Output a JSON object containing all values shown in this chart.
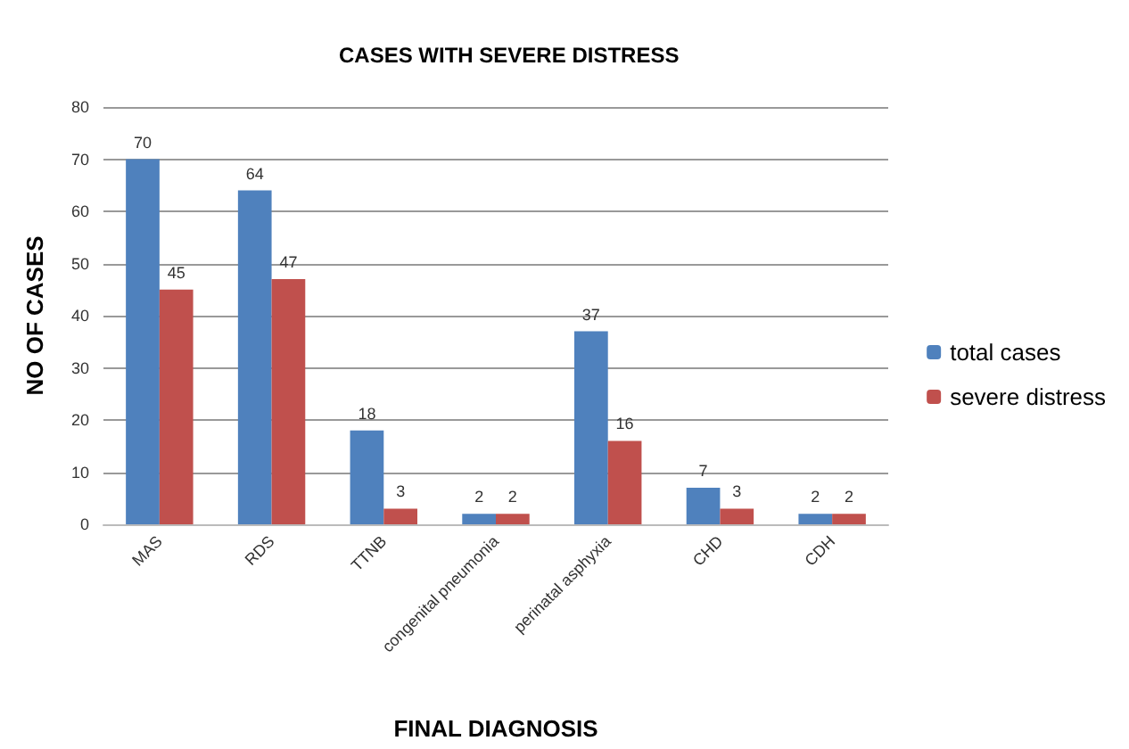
{
  "chart_data": {
    "type": "bar",
    "title": "CASES WITH SEVERE DISTRESS",
    "xlabel": "FINAL DIAGNOSIS",
    "ylabel": "NO OF CASES",
    "categories": [
      "MAS",
      "RDS",
      "TTNB",
      "congenital pneumonia",
      "perinatal asphyxia",
      "CHD",
      "CDH"
    ],
    "series": [
      {
        "name": "total cases",
        "color": "#4f81bd",
        "values": [
          70,
          64,
          18,
          2,
          37,
          7,
          2
        ]
      },
      {
        "name": "severe distress",
        "color": "#c0504d",
        "values": [
          45,
          47,
          3,
          2,
          16,
          3,
          2
        ]
      }
    ],
    "ylim": [
      0,
      80
    ],
    "yticks": [
      0,
      10,
      20,
      30,
      40,
      50,
      60,
      70,
      80
    ],
    "grid": "y",
    "legend": "right",
    "data_labels": true
  }
}
